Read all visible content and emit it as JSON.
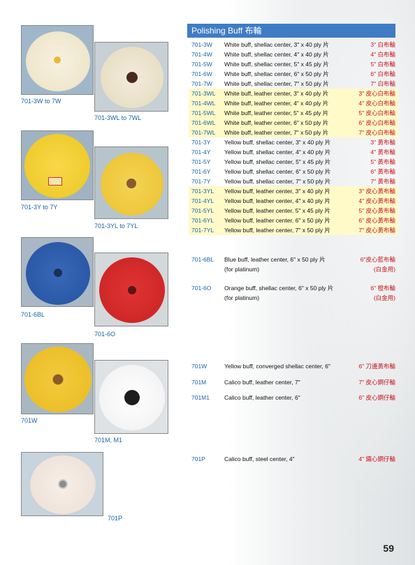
{
  "header": {
    "title": "Polishing Buff  布輪"
  },
  "table_rows": [
    {
      "code": "701-3W",
      "desc": "White buff, shellac center, 3\" x 40 ply 片",
      "zh": "3\" 白布輪",
      "hl": false
    },
    {
      "code": "701-4W",
      "desc": "White buff, shellac center, 4\" x 40 ply 片",
      "zh": "4\" 白布輪",
      "hl": false
    },
    {
      "code": "701-5W",
      "desc": "White buff, shellac center, 5\" x 45 ply 片",
      "zh": "5\" 白布輪",
      "hl": false
    },
    {
      "code": "701-6W",
      "desc": "White buff, shellac center, 6\" x 50 ply 片",
      "zh": "6\" 白布輪",
      "hl": false
    },
    {
      "code": "701-7W",
      "desc": "White buff, shellac center, 7\" x 50 ply 片",
      "zh": "7\" 白布輪",
      "hl": false
    },
    {
      "code": "701-3WL",
      "desc": "White buff, leather center, 3\" x 40 ply 片",
      "zh": "3\" 皮心白布輪",
      "hl": true
    },
    {
      "code": "701-4WL",
      "desc": "White buff, leather center, 4\" x 40 ply 片",
      "zh": "4\" 皮心白布輪",
      "hl": true
    },
    {
      "code": "701-5WL",
      "desc": "White buff, leather center, 5\" x 45 ply 片",
      "zh": "5\" 皮心白布輪",
      "hl": true
    },
    {
      "code": "701-6WL",
      "desc": "White buff, leather center, 6\" x 50 ply 片",
      "zh": "6\" 皮心白布輪",
      "hl": true
    },
    {
      "code": "701-7WL",
      "desc": "White buff, leather center, 7\" x 50 ply 片",
      "zh": "7\" 皮心白布輪",
      "hl": true
    },
    {
      "code": "701-3Y",
      "desc": "Yellow buff, shellac center, 3\" x 40 ply 片",
      "zh": "3\" 黃布輪",
      "hl": false
    },
    {
      "code": "701-4Y",
      "desc": "Yellow buff, shellac center, 4\" x 40 ply 片",
      "zh": "4\" 黃布輪",
      "hl": false
    },
    {
      "code": "701-5Y",
      "desc": "Yellow buff, shellac center, 5\" x 45 ply 片",
      "zh": "5\" 黃布輪",
      "hl": false
    },
    {
      "code": "701-6Y",
      "desc": "Yellow buff, shellac center, 6\" x 50 ply 片",
      "zh": "6\" 黃布輪",
      "hl": false
    },
    {
      "code": "701-7Y",
      "desc": "Yellow buff, shellac center, 7\" x 50 ply 片",
      "zh": "7\" 黃布輪",
      "hl": false
    },
    {
      "code": "701-3YL",
      "desc": "Yellow buff, leather center, 3\" x 40 ply 片",
      "zh": "3\" 皮心黃布輪",
      "hl": true
    },
    {
      "code": "701-4YL",
      "desc": "Yellow buff, leather center, 4\" x 40 ply 片",
      "zh": "4\" 皮心黃布輪",
      "hl": true
    },
    {
      "code": "701-5YL",
      "desc": "Yellow buff, leather center, 5\" x 45 ply 片",
      "zh": "5\" 皮心黃布輪",
      "hl": true
    },
    {
      "code": "701-6YL",
      "desc": "Yellow buff, leather center, 6\" x 50 ply 片",
      "zh": "6\" 皮心黃布輪",
      "hl": true
    },
    {
      "code": "701-7YL",
      "desc": "Yellow buff, leather center, 7\" x 50 ply 片",
      "zh": "7\" 皮心黃布輪",
      "hl": true
    }
  ],
  "entries": {
    "bl": {
      "code": "701-6BL",
      "desc": "Blue buff, leather center, 6\" x 50 ply 片",
      "sub": "(for platinum)",
      "zh": "6\"皮心藍布輪",
      "zh_sub": "(白金用)"
    },
    "o": {
      "code": "701-6O",
      "desc": "Orange buff, shellac center, 6\" x 50 ply 片",
      "sub": "(for platinum)",
      "zh": "6\" 橙布輪",
      "zh_sub": "(白金用)"
    },
    "w": {
      "code": "701W",
      "desc": "Yellow buff, converged shellac center, 6\"",
      "zh": "6\" 刀邊黃布輪"
    },
    "m": {
      "code": "701M",
      "desc": "Calico buff, leather center, 7\"",
      "zh": "7\" 皮心鋼仔輪"
    },
    "m1": {
      "code": "701M1",
      "desc": "Calico buff, leather center, 6\"",
      "zh": "6\" 皮心鋼仔輪"
    },
    "p": {
      "code": "701P",
      "desc": "Calico buff, steel center, 4\"",
      "zh": "4\" 鐵心鋼仔輪"
    }
  },
  "captions": {
    "c1": "701-3W to 7W",
    "c2": "701-3WL to 7WL",
    "c3": "701-3Y to 7Y",
    "c4": "701-3YL to 7YL",
    "c5": "701-6BL",
    "c6": "701-6O",
    "c7": "701W",
    "c8": "701M, M1",
    "c9": "701P"
  },
  "page_number": "59",
  "colors": {
    "accent_blue": "#3f7cc4",
    "code_blue": "#1a63a8",
    "zh_red": "#c8161d",
    "highlight": "#fffac8"
  }
}
